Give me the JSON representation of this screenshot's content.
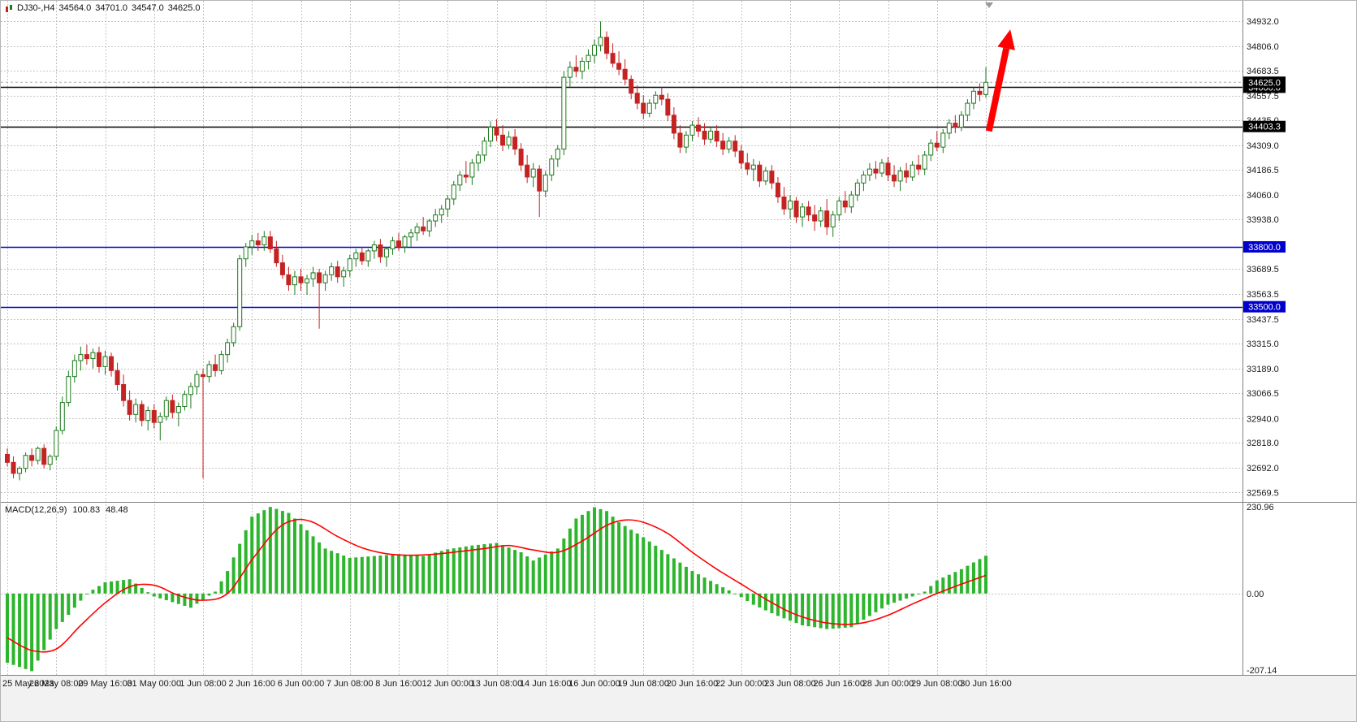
{
  "symbol_info": {
    "symbol_tf": "DJ30-,H4",
    "open": "34564.0",
    "high": "34701.0",
    "low": "34547.0",
    "close": "34625.0"
  },
  "colors": {
    "bg": "#ffffff",
    "grid": "#c4c4c4",
    "axis_text": "#1a1a1a",
    "bull": "#1c7a1c",
    "bull_fill": "#ffffff",
    "bear": "#c52222",
    "macd_hist": "#2db52d",
    "macd_signal": "#ff0000",
    "arrow": "#ff0000",
    "level_black": "#000000",
    "level_blue": "#0000cd",
    "bottom_strip": "#f2f2f2",
    "divider": "#808080"
  },
  "chart_data": {
    "type": "candlestick",
    "title": "DJ30-,H4",
    "bars_per_gridline": 8,
    "price_range": [
      32530,
      35025
    ],
    "price_ticks": [
      "34932.0",
      "34806.0",
      "34683.5",
      "34557.5",
      "34435.0",
      "34309.0",
      "34186.5",
      "34060.0",
      "33938.0",
      "33689.5",
      "33563.5",
      "33437.5",
      "33315.0",
      "33189.0",
      "33066.5",
      "32940.0",
      "32818.0",
      "32692.0",
      "32569.5"
    ],
    "x_labels": [
      "25 May 2023",
      "26 May 08:00",
      "29 May 16:00",
      "31 May 00:00",
      "1 Jun 08:00",
      "2 Jun 16:00",
      "6 Jun 00:00",
      "7 Jun 08:00",
      "8 Jun 16:00",
      "12 Jun 00:00",
      "13 Jun 08:00",
      "14 Jun 16:00",
      "16 Jun 00:00",
      "19 Jun 08:00",
      "20 Jun 16:00",
      "22 Jun 00:00",
      "23 Jun 08:00",
      "26 Jun 16:00",
      "28 Jun 00:00",
      "29 Jun 08:00",
      "30 Jun 16:00"
    ],
    "levels": [
      {
        "value": 34600.0,
        "label": "34600.0",
        "color": "#000000"
      },
      {
        "value": 34403.3,
        "label": "34403.3",
        "color": "#000000"
      },
      {
        "value": 33800.0,
        "label": "33800.0",
        "color": "#0000cd"
      },
      {
        "value": 33500.0,
        "label": "33500.0",
        "color": "#0000cd"
      }
    ],
    "current_price": {
      "value": 34625.0,
      "label": "34625.0"
    },
    "candles": [
      [
        32760,
        32790,
        32700,
        32720
      ],
      [
        32720,
        32750,
        32640,
        32665
      ],
      [
        32665,
        32700,
        32630,
        32690
      ],
      [
        32690,
        32770,
        32670,
        32755
      ],
      [
        32755,
        32790,
        32700,
        32730
      ],
      [
        32730,
        32800,
        32710,
        32790
      ],
      [
        32790,
        32810,
        32690,
        32710
      ],
      [
        32710,
        32760,
        32680,
        32750
      ],
      [
        32750,
        32900,
        32730,
        32880
      ],
      [
        32880,
        33050,
        32860,
        33020
      ],
      [
        33020,
        33180,
        33000,
        33150
      ],
      [
        33150,
        33260,
        33120,
        33230
      ],
      [
        33230,
        33300,
        33180,
        33260
      ],
      [
        33260,
        33310,
        33210,
        33240
      ],
      [
        33240,
        33290,
        33190,
        33270
      ],
      [
        33270,
        33300,
        33170,
        33200
      ],
      [
        33200,
        33280,
        33160,
        33250
      ],
      [
        33250,
        33270,
        33150,
        33180
      ],
      [
        33180,
        33220,
        33080,
        33110
      ],
      [
        33110,
        33160,
        33000,
        33030
      ],
      [
        33030,
        33080,
        32930,
        32960
      ],
      [
        32960,
        33040,
        32920,
        33010
      ],
      [
        33010,
        33030,
        32900,
        32930
      ],
      [
        32930,
        33000,
        32880,
        32980
      ],
      [
        32980,
        33010,
        32890,
        32920
      ],
      [
        32920,
        32970,
        32830,
        32950
      ],
      [
        32950,
        33050,
        32930,
        33030
      ],
      [
        33030,
        33060,
        32940,
        32970
      ],
      [
        32970,
        33020,
        32900,
        33000
      ],
      [
        33000,
        33080,
        32980,
        33060
      ],
      [
        33060,
        33120,
        32990,
        33100
      ],
      [
        33100,
        33180,
        33060,
        33160
      ],
      [
        33160,
        33190,
        32640,
        33150
      ],
      [
        33150,
        33230,
        33120,
        33210
      ],
      [
        33210,
        33260,
        33150,
        33180
      ],
      [
        33180,
        33280,
        33160,
        33260
      ],
      [
        33260,
        33340,
        33220,
        33320
      ],
      [
        33320,
        33420,
        33300,
        33400
      ],
      [
        33400,
        33760,
        33380,
        33740
      ],
      [
        33740,
        33820,
        33700,
        33800
      ],
      [
        33800,
        33860,
        33760,
        33830
      ],
      [
        33830,
        33870,
        33780,
        33810
      ],
      [
        33810,
        33880,
        33780,
        33850
      ],
      [
        33850,
        33880,
        33770,
        33790
      ],
      [
        33790,
        33830,
        33700,
        33720
      ],
      [
        33720,
        33760,
        33640,
        33660
      ],
      [
        33660,
        33700,
        33580,
        33610
      ],
      [
        33610,
        33680,
        33560,
        33650
      ],
      [
        33650,
        33690,
        33580,
        33620
      ],
      [
        33620,
        33660,
        33560,
        33640
      ],
      [
        33640,
        33700,
        33600,
        33670
      ],
      [
        33670,
        33690,
        33390,
        33620
      ],
      [
        33620,
        33680,
        33580,
        33660
      ],
      [
        33660,
        33720,
        33630,
        33700
      ],
      [
        33700,
        33730,
        33620,
        33650
      ],
      [
        33650,
        33700,
        33600,
        33680
      ],
      [
        33680,
        33760,
        33650,
        33740
      ],
      [
        33740,
        33790,
        33700,
        33770
      ],
      [
        33770,
        33800,
        33710,
        33730
      ],
      [
        33730,
        33790,
        33700,
        33780
      ],
      [
        33780,
        33830,
        33740,
        33810
      ],
      [
        33810,
        33840,
        33720,
        33750
      ],
      [
        33750,
        33800,
        33700,
        33790
      ],
      [
        33790,
        33850,
        33760,
        33830
      ],
      [
        33830,
        33870,
        33780,
        33800
      ],
      [
        33800,
        33860,
        33770,
        33850
      ],
      [
        33850,
        33890,
        33800,
        33870
      ],
      [
        33870,
        33920,
        33830,
        33900
      ],
      [
        33900,
        33950,
        33860,
        33880
      ],
      [
        33880,
        33940,
        33850,
        33930
      ],
      [
        33930,
        33990,
        33900,
        33960
      ],
      [
        33960,
        34010,
        33920,
        33990
      ],
      [
        33990,
        34060,
        33950,
        34040
      ],
      [
        34040,
        34130,
        34010,
        34110
      ],
      [
        34110,
        34180,
        34080,
        34160
      ],
      [
        34160,
        34230,
        34120,
        34150
      ],
      [
        34150,
        34240,
        34110,
        34220
      ],
      [
        34220,
        34280,
        34180,
        34260
      ],
      [
        34260,
        34350,
        34230,
        34330
      ],
      [
        34330,
        34430,
        34300,
        34400
      ],
      [
        34400,
        34440,
        34330,
        34360
      ],
      [
        34360,
        34410,
        34280,
        34310
      ],
      [
        34310,
        34380,
        34290,
        34350
      ],
      [
        34350,
        34390,
        34260,
        34290
      ],
      [
        34290,
        34320,
        34180,
        34210
      ],
      [
        34210,
        34260,
        34120,
        34150
      ],
      [
        34150,
        34220,
        34100,
        34190
      ],
      [
        34190,
        34210,
        33950,
        34080
      ],
      [
        34080,
        34180,
        34050,
        34160
      ],
      [
        34160,
        34260,
        34130,
        34240
      ],
      [
        34240,
        34310,
        34200,
        34290
      ],
      [
        34290,
        34680,
        34260,
        34650
      ],
      [
        34650,
        34730,
        34600,
        34700
      ],
      [
        34700,
        34760,
        34650,
        34680
      ],
      [
        34680,
        34750,
        34640,
        34730
      ],
      [
        34730,
        34790,
        34690,
        34760
      ],
      [
        34760,
        34840,
        34720,
        34810
      ],
      [
        34810,
        34930,
        34780,
        34850
      ],
      [
        34850,
        34880,
        34740,
        34770
      ],
      [
        34770,
        34820,
        34700,
        34720
      ],
      [
        34720,
        34780,
        34660,
        34690
      ],
      [
        34690,
        34740,
        34610,
        34640
      ],
      [
        34640,
        34660,
        34540,
        34570
      ],
      [
        34570,
        34610,
        34490,
        34520
      ],
      [
        34520,
        34560,
        34440,
        34470
      ],
      [
        34470,
        34540,
        34450,
        34520
      ],
      [
        34520,
        34580,
        34490,
        34560
      ],
      [
        34560,
        34600,
        34510,
        34540
      ],
      [
        34540,
        34570,
        34430,
        34460
      ],
      [
        34460,
        34500,
        34340,
        34370
      ],
      [
        34370,
        34410,
        34270,
        34300
      ],
      [
        34300,
        34380,
        34270,
        34360
      ],
      [
        34360,
        34430,
        34330,
        34410
      ],
      [
        34410,
        34450,
        34350,
        34380
      ],
      [
        34380,
        34420,
        34310,
        34340
      ],
      [
        34340,
        34400,
        34320,
        34380
      ],
      [
        34380,
        34410,
        34300,
        34330
      ],
      [
        34330,
        34370,
        34260,
        34290
      ],
      [
        34290,
        34350,
        34270,
        34330
      ],
      [
        34330,
        34360,
        34250,
        34280
      ],
      [
        34280,
        34310,
        34190,
        34220
      ],
      [
        34220,
        34270,
        34160,
        34190
      ],
      [
        34190,
        34240,
        34130,
        34210
      ],
      [
        34210,
        34230,
        34100,
        34130
      ],
      [
        34130,
        34200,
        34110,
        34180
      ],
      [
        34180,
        34210,
        34090,
        34120
      ],
      [
        34120,
        34150,
        34020,
        34050
      ],
      [
        34050,
        34100,
        33960,
        33990
      ],
      [
        33990,
        34060,
        33940,
        34030
      ],
      [
        34030,
        34050,
        33920,
        33950
      ],
      [
        33950,
        34020,
        33900,
        34000
      ],
      [
        34000,
        34030,
        33930,
        33960
      ],
      [
        33960,
        34010,
        33880,
        33930
      ],
      [
        33930,
        34000,
        33900,
        33980
      ],
      [
        33980,
        34040,
        33860,
        33900
      ],
      [
        33900,
        33980,
        33850,
        33960
      ],
      [
        33960,
        34050,
        33930,
        34030
      ],
      [
        34030,
        34080,
        33970,
        34000
      ],
      [
        34000,
        34080,
        33970,
        34060
      ],
      [
        34060,
        34140,
        34030,
        34120
      ],
      [
        34120,
        34180,
        34080,
        34160
      ],
      [
        34160,
        34220,
        34130,
        34190
      ],
      [
        34190,
        34230,
        34140,
        34170
      ],
      [
        34170,
        34240,
        34150,
        34220
      ],
      [
        34220,
        34250,
        34130,
        34160
      ],
      [
        34160,
        34210,
        34100,
        34130
      ],
      [
        34130,
        34200,
        34080,
        34180
      ],
      [
        34180,
        34220,
        34120,
        34150
      ],
      [
        34150,
        34230,
        34130,
        34210
      ],
      [
        34210,
        34260,
        34160,
        34190
      ],
      [
        34190,
        34280,
        34160,
        34260
      ],
      [
        34260,
        34340,
        34230,
        34320
      ],
      [
        34320,
        34380,
        34280,
        34300
      ],
      [
        34300,
        34390,
        34270,
        34370
      ],
      [
        34370,
        34440,
        34340,
        34420
      ],
      [
        34420,
        34460,
        34370,
        34400
      ],
      [
        34400,
        34480,
        34380,
        34460
      ],
      [
        34460,
        34540,
        34430,
        34520
      ],
      [
        34520,
        34600,
        34490,
        34580
      ],
      [
        34580,
        34620,
        34530,
        34564
      ],
      [
        34564,
        34701,
        34547,
        34625
      ]
    ],
    "macd": {
      "label": "MACD(12,26,9)",
      "value": "100.83",
      "signal": "48.48",
      "axis_ticks": [
        "230.96",
        "0.00",
        "-207.14"
      ],
      "range": [
        -215,
        240
      ],
      "hist_idx": [
        0,
        4,
        8,
        13,
        16,
        20,
        24,
        30,
        34,
        36,
        40,
        43,
        46,
        48,
        52,
        56,
        60,
        64,
        68,
        72,
        76,
        80,
        84,
        86,
        90,
        93,
        96,
        98,
        100,
        104,
        108,
        112,
        116,
        119,
        122,
        126,
        130,
        134,
        138,
        141,
        144,
        148,
        150,
        152,
        156,
        160
      ],
      "hist_vals": [
        -185,
        -207.14,
        -95,
        0,
        30,
        38,
        -8,
        -38,
        5,
        60,
        205,
        230.96,
        215,
        185,
        120,
        95,
        100,
        105,
        100,
        118,
        128,
        135,
        110,
        88,
        120,
        200,
        230,
        220,
        190,
        150,
        105,
        60,
        25,
        0,
        -30,
        -60,
        -85,
        -95,
        -90,
        -60,
        -30,
        -8,
        5,
        35,
        65,
        100.83
      ],
      "sig_idx": [
        0,
        4,
        8,
        12,
        16,
        20,
        24,
        28,
        32,
        36,
        40,
        44,
        47,
        50,
        54,
        58,
        62,
        66,
        70,
        74,
        78,
        82,
        86,
        90,
        94,
        98,
        101,
        104,
        108,
        112,
        116,
        120,
        124,
        128,
        132,
        136,
        140,
        144,
        148,
        152,
        156,
        160
      ],
      "sig_vals": [
        -118,
        -152,
        -148,
        -85,
        -25,
        18,
        22,
        -5,
        -18,
        0,
        90,
        170,
        196,
        190,
        152,
        122,
        106,
        102,
        105,
        112,
        120,
        128,
        116,
        110,
        140,
        182,
        196,
        190,
        160,
        110,
        65,
        25,
        -15,
        -50,
        -72,
        -82,
        -78,
        -58,
        -28,
        0,
        25,
        48.48
      ]
    },
    "annotations": {
      "arrow": {
        "from_index": 160.5,
        "from_price": 34380,
        "to_index": 164,
        "to_price": 34890,
        "color": "#ff0000"
      }
    }
  }
}
